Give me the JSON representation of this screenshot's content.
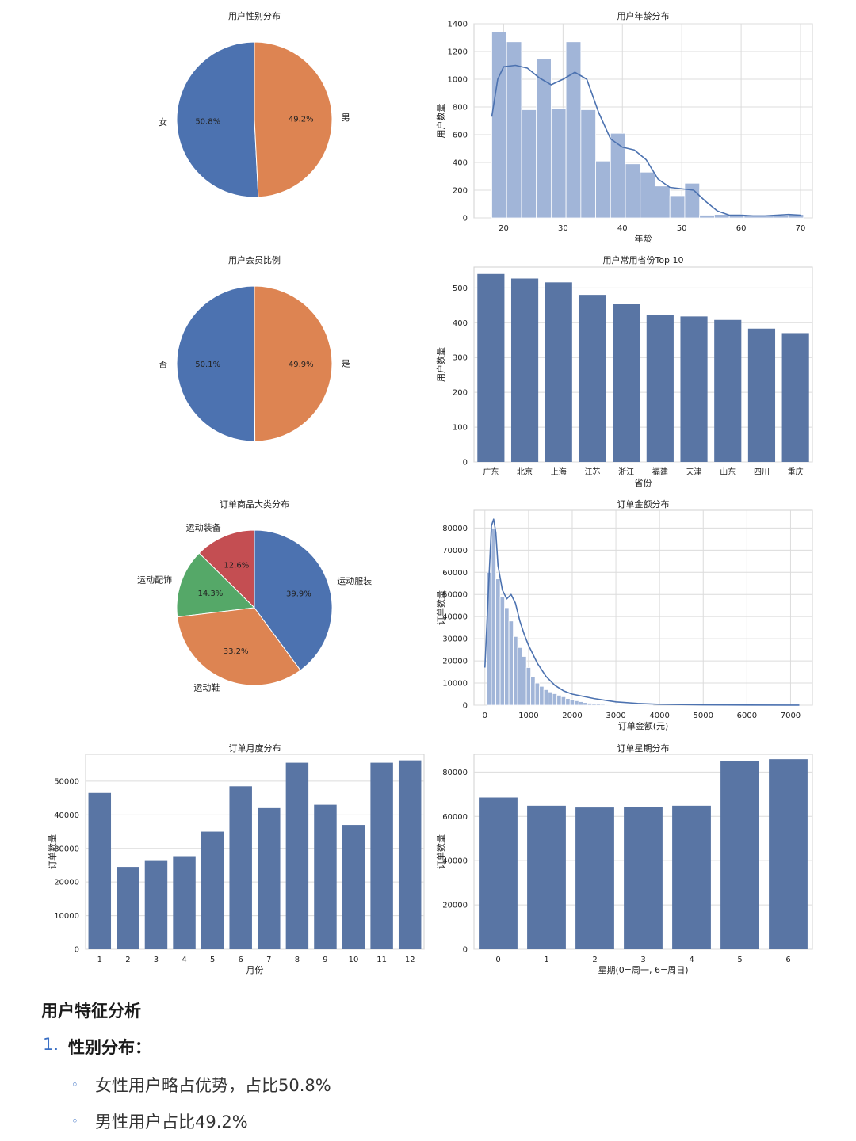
{
  "chart_data": [
    {
      "id": "gender",
      "type": "pie",
      "title": "用户性别分布",
      "slices": [
        {
          "label": "女",
          "pct_label": "50.8%",
          "value": 50.8,
          "color": "#4c72b0"
        },
        {
          "label": "男",
          "pct_label": "49.2%",
          "value": 49.2,
          "color": "#dd8452"
        }
      ]
    },
    {
      "id": "age",
      "type": "bar",
      "subtype": "histogram",
      "title": "用户年龄分布",
      "xlabel": "年龄",
      "ylabel": "用户数量",
      "xlim": [
        15,
        72
      ],
      "ylim": [
        0,
        1400
      ],
      "xticks": [
        20,
        30,
        40,
        50,
        60,
        70
      ],
      "yticks": [
        0,
        200,
        400,
        600,
        800,
        1000,
        1200,
        1400
      ],
      "bin_start": 18,
      "bin_width": 2.5,
      "values": [
        1340,
        1270,
        780,
        1150,
        790,
        1270,
        780,
        410,
        610,
        390,
        330,
        230,
        160,
        250,
        20,
        25,
        25,
        15,
        15,
        20,
        25
      ],
      "kde_x": [
        18,
        19,
        20,
        22,
        24,
        26,
        28,
        30,
        32,
        34,
        36,
        38,
        40,
        42,
        44,
        46,
        48,
        50,
        52,
        54,
        56,
        58,
        60,
        62,
        64,
        66,
        68,
        70
      ],
      "kde_y": [
        730,
        1000,
        1090,
        1100,
        1080,
        1010,
        960,
        1000,
        1050,
        1000,
        760,
        570,
        510,
        490,
        420,
        280,
        220,
        210,
        200,
        120,
        50,
        20,
        20,
        15,
        15,
        20,
        25,
        20
      ],
      "bar_color": "#a1b5d8",
      "line_color": "#4c72b0"
    },
    {
      "id": "member",
      "type": "pie",
      "title": "用户会员比例",
      "slices": [
        {
          "label": "否",
          "pct_label": "50.1%",
          "value": 50.1,
          "color": "#4c72b0"
        },
        {
          "label": "是",
          "pct_label": "49.9%",
          "value": 49.9,
          "color": "#dd8452"
        }
      ]
    },
    {
      "id": "province",
      "type": "bar",
      "title": "用户常用省份Top 10",
      "xlabel": "省份",
      "ylabel": "用户数量",
      "ylim": [
        0,
        560
      ],
      "yticks": [
        0,
        100,
        200,
        300,
        400,
        500
      ],
      "categories": [
        "广东",
        "北京",
        "上海",
        "江苏",
        "浙江",
        "福建",
        "天津",
        "山东",
        "四川",
        "重庆"
      ],
      "values": [
        540,
        527,
        516,
        480,
        453,
        422,
        418,
        408,
        383,
        370
      ],
      "bar_color": "#5975a4"
    },
    {
      "id": "category",
      "type": "pie",
      "title": "订单商品大类分布",
      "slices": [
        {
          "label": "运动装备",
          "pct_label": "12.6%",
          "value": 12.6,
          "color": "#c44e52"
        },
        {
          "label": "运动配饰",
          "pct_label": "14.3%",
          "value": 14.3,
          "color": "#55a868"
        },
        {
          "label": "运动鞋",
          "pct_label": "33.2%",
          "value": 33.2,
          "color": "#dd8452"
        },
        {
          "label": "运动服装",
          "pct_label": "39.9%",
          "value": 39.9,
          "color": "#4c72b0"
        }
      ]
    },
    {
      "id": "amount",
      "type": "bar",
      "subtype": "histogram",
      "title": "订单金额分布",
      "xlabel": "订单金额(元)",
      "ylabel": "订单数量",
      "xlim": [
        -250,
        7500
      ],
      "ylim": [
        0,
        88000
      ],
      "xticks": [
        0,
        1000,
        2000,
        3000,
        4000,
        5000,
        6000,
        7000
      ],
      "yticks": [
        0,
        10000,
        20000,
        30000,
        40000,
        50000,
        60000,
        70000,
        80000
      ],
      "bin_start": 50,
      "bin_width": 100,
      "values": [
        60000,
        80000,
        57000,
        49000,
        44000,
        38000,
        31000,
        26000,
        22000,
        17000,
        13000,
        10000,
        8500,
        7000,
        6000,
        5200,
        4500,
        3800,
        3000,
        2500,
        2000,
        1600,
        1200,
        900,
        700,
        500,
        400,
        300,
        200,
        150,
        100,
        60,
        50,
        40,
        30,
        20,
        15,
        10
      ],
      "kde_x": [
        0,
        100,
        150,
        200,
        250,
        300,
        400,
        500,
        600,
        700,
        800,
        900,
        1000,
        1200,
        1400,
        1600,
        1800,
        2000,
        2500,
        3000,
        3500,
        4000,
        5000,
        6000,
        7000,
        7200
      ],
      "kde_y": [
        17000,
        60000,
        81000,
        84000,
        78000,
        63000,
        52000,
        48000,
        50000,
        46000,
        38000,
        32000,
        27000,
        19000,
        13000,
        9000,
        6500,
        5000,
        3000,
        1500,
        800,
        400,
        150,
        60,
        20,
        10
      ],
      "bar_color": "#a1b5d8",
      "line_color": "#4c72b0"
    },
    {
      "id": "month",
      "type": "bar",
      "title": "订单月度分布",
      "xlabel": "月份",
      "ylabel": "订单数量",
      "ylim": [
        0,
        58000
      ],
      "yticks": [
        0,
        10000,
        20000,
        30000,
        40000,
        50000
      ],
      "categories": [
        "1",
        "2",
        "3",
        "4",
        "5",
        "6",
        "7",
        "8",
        "9",
        "10",
        "11",
        "12"
      ],
      "values": [
        46500,
        24500,
        26500,
        27700,
        35000,
        48500,
        42000,
        55500,
        43000,
        37000,
        55500,
        56200
      ],
      "bar_color": "#5975a4"
    },
    {
      "id": "weekday",
      "type": "bar",
      "title": "订单星期分布",
      "xlabel": "星期(0=周一, 6=周日)",
      "ylabel": "订单数量",
      "ylim": [
        0,
        88000
      ],
      "yticks": [
        0,
        20000,
        40000,
        60000,
        80000
      ],
      "categories": [
        "0",
        "1",
        "2",
        "3",
        "4",
        "5",
        "6"
      ],
      "values": [
        68500,
        64800,
        64000,
        64300,
        64800,
        84800,
        85800
      ],
      "bar_color": "#5975a4"
    }
  ],
  "analysis": {
    "heading": "用户特征分析",
    "item_number": "1.",
    "item_title": "性别分布：",
    "bullet_symbol": "◦",
    "bullets": [
      "女性用户略占优势，占比50.8%",
      "男性用户占比49.2%"
    ]
  }
}
